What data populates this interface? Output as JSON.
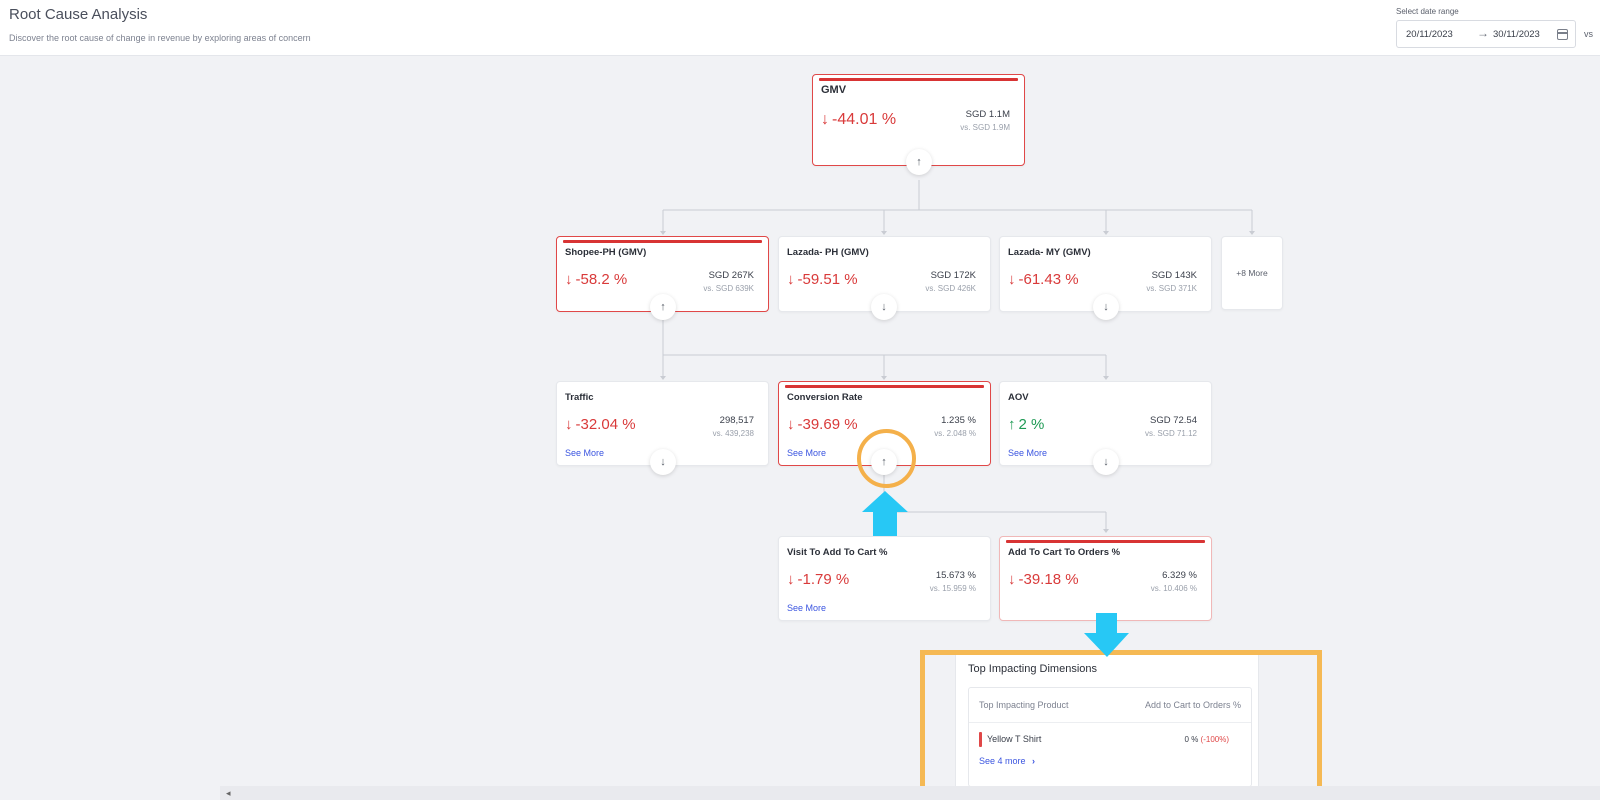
{
  "header": {
    "title": "Root Cause Analysis",
    "subtitle": "Discover the root cause of change in revenue by exploring areas of concern",
    "date_range_label": "Select date range",
    "date_start": "20/11/2023",
    "date_arrow": "→",
    "date_end": "30/11/2023",
    "compare_label": "vs",
    "calendar_icon": "calendar-icon"
  },
  "colors": {
    "negative": "#d93a3a",
    "positive": "#1e9a54",
    "link": "#3b55e0",
    "highlight": "#f5b954",
    "pointer": "#27c8f5"
  },
  "root": {
    "title": "GMV",
    "arrow": "↓",
    "change": "-44.01 %",
    "value": "SGD 1.1M",
    "compare": "vs. SGD 1.9M",
    "toggle": "↑"
  },
  "channels": [
    {
      "title": "Shopee-PH (GMV)",
      "arrow": "↓",
      "change": "-58.2 %",
      "value": "SGD 267K",
      "compare": "vs. SGD 639K",
      "toggle": "↑"
    },
    {
      "title": "Lazada- PH (GMV)",
      "arrow": "↓",
      "change": "-59.51 %",
      "value": "SGD 172K",
      "compare": "vs. SGD 426K",
      "toggle": "↓"
    },
    {
      "title": "Lazada- MY (GMV)",
      "arrow": "↓",
      "change": "-61.43 %",
      "value": "SGD 143K",
      "compare": "vs. SGD 371K",
      "toggle": "↓"
    }
  ],
  "more_channels": "+8 More",
  "drivers": [
    {
      "title": "Traffic",
      "arrow": "↓",
      "change": "-32.04 %",
      "value": "298,517",
      "compare": "vs. 439,238",
      "see_more": "See More",
      "toggle": "↓"
    },
    {
      "title": "Conversion Rate",
      "arrow": "↓",
      "change": "-39.69 %",
      "value": "1.235 %",
      "compare": "vs. 2.048 %",
      "see_more": "See More",
      "toggle": "↑"
    },
    {
      "title": "AOV",
      "arrow": "↑",
      "change": "2 %",
      "value": "SGD 72.54",
      "compare": "vs. SGD 71.12",
      "see_more": "See More",
      "toggle": "↓"
    }
  ],
  "sub_drivers": [
    {
      "title": "Visit To Add To Cart %",
      "arrow": "↓",
      "change": "-1.79 %",
      "value": "15.673 %",
      "compare": "vs. 15.959 %",
      "see_more": "See More"
    },
    {
      "title": "Add To Cart To Orders %",
      "arrow": "↓",
      "change": "-39.18 %",
      "value": "6.329 %",
      "compare": "vs. 10.406 %"
    }
  ],
  "dimensions": {
    "title": "Top Impacting Dimensions",
    "col_left": "Top Impacting Product",
    "col_right": "Add to Cart to Orders %",
    "rows": [
      {
        "name": "Yellow T Shirt",
        "value": "0 %",
        "change": "(-100%)"
      }
    ],
    "see_more": "See 4 more",
    "chevron": "›"
  },
  "footer_caret": "◂"
}
